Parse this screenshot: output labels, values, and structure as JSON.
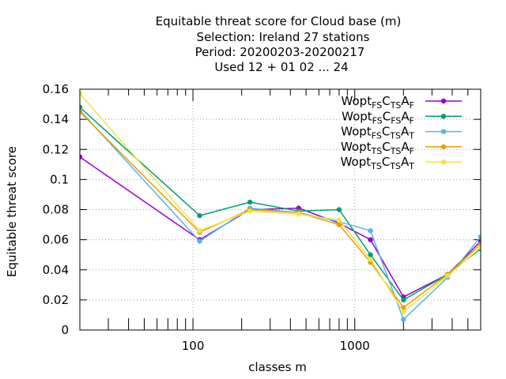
{
  "chart_data": {
    "type": "line",
    "title_lines": [
      "Equitable threat score  for Cloud base (m)",
      "Selection: Ireland     27 stations",
      "Period: 20200203-20200217",
      "Used  12 + 01 02 ... 24"
    ],
    "xlabel": "classes m",
    "ylabel": "Equitable threat score",
    "x_scale": "log",
    "xlim": [
      20,
      6000
    ],
    "ylim": [
      0,
      0.16
    ],
    "x_tick_labels": [
      "100",
      "1000"
    ],
    "y_tick_labels": [
      "0",
      "0.02",
      "0.04",
      "0.06",
      "0.08",
      "0.1",
      "0.12",
      "0.14",
      "0.16"
    ],
    "grid": true,
    "legend_position": "top-right",
    "x": [
      20,
      110,
      225,
      450,
      800,
      1250,
      2000,
      3750,
      6000
    ],
    "series": [
      {
        "legend": {
          "main": "Wopt",
          "sub1": "FS",
          "c": "C",
          "sub2": "TS",
          "a": "A",
          "sub3": "F"
        },
        "color": "#9400d3",
        "values": [
          0.115,
          0.06,
          0.08,
          0.081,
          0.071,
          0.06,
          0.022,
          0.037,
          0.059
        ]
      },
      {
        "legend": {
          "main": "Wopt",
          "sub1": "FS",
          "c": "C",
          "sub2": "FS",
          "a": "A",
          "sub3": "F"
        },
        "color": "#009e73",
        "values": [
          0.148,
          0.076,
          0.085,
          0.079,
          0.08,
          0.05,
          0.02,
          0.037,
          0.054
        ]
      },
      {
        "legend": {
          "main": "Wopt",
          "sub1": "FS",
          "c": "C",
          "sub2": "TS",
          "a": "A",
          "sub3": "T"
        },
        "color": "#56b4e9",
        "values": [
          0.146,
          0.059,
          0.081,
          0.078,
          0.072,
          0.066,
          0.007,
          0.035,
          0.062
        ]
      },
      {
        "legend": {
          "main": "Wopt",
          "sub1": "TS",
          "c": "C",
          "sub2": "TS",
          "a": "A",
          "sub3": "F"
        },
        "color": "#e69f00",
        "values": [
          0.145,
          0.065,
          0.08,
          0.078,
          0.07,
          0.045,
          0.015,
          0.037,
          0.057
        ]
      },
      {
        "legend": {
          "main": "Wopt",
          "sub1": "TS",
          "c": "C",
          "sub2": "TS",
          "a": "A",
          "sub3": "T"
        },
        "color": "#f0e442",
        "values": [
          0.157,
          0.066,
          0.079,
          0.077,
          0.073,
          0.047,
          0.012,
          0.036,
          0.055
        ]
      }
    ]
  }
}
